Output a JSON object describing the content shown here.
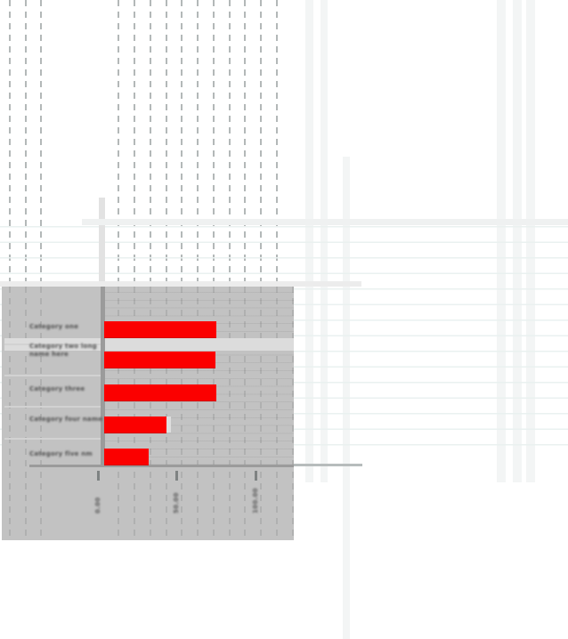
{
  "app": {
    "surface": "spreadsheet-canvas",
    "selected_object": "embedded-bar-chart"
  },
  "chart_data": {
    "type": "bar",
    "orientation": "horizontal",
    "title": "",
    "xlabel": "",
    "ylabel": "",
    "categories": [
      "Category one",
      "Category two long\nname here",
      "Category three",
      "Category four name",
      "Category five nm"
    ],
    "values": [
      74,
      73,
      74,
      42,
      31
    ],
    "x_ticks": [
      0,
      50,
      100
    ],
    "x_tick_labels": [
      "0.00",
      "50.00",
      "100.00"
    ],
    "xlim": [
      0,
      123
    ],
    "grid": "dashed-vertical-guides",
    "legend": "none",
    "bar_color": "#FB0000",
    "plot_bg": "#C2C2C2",
    "axis_color": "#9B9B9B",
    "label_color": "#4F4F4F"
  }
}
